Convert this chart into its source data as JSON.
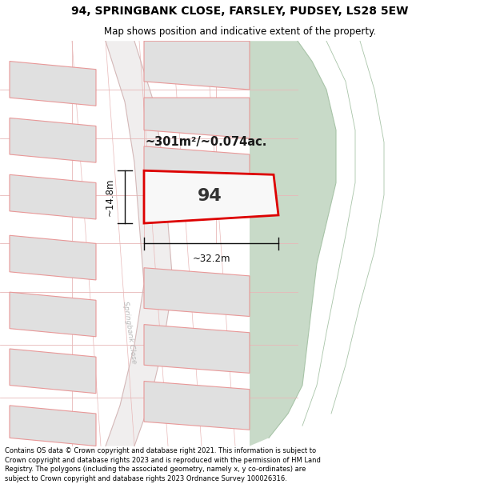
{
  "title_line1": "94, SPRINGBANK CLOSE, FARSLEY, PUDSEY, LS28 5EW",
  "title_line2": "Map shows position and indicative extent of the property.",
  "footer_text": "Contains OS data © Crown copyright and database right 2021. This information is subject to Crown copyright and database rights 2023 and is reproduced with the permission of HM Land Registry. The polygons (including the associated geometry, namely x, y co-ordinates) are subject to Crown copyright and database rights 2023 Ordnance Survey 100026316.",
  "background_color": "#ffffff",
  "map_bg_color": "#f7f7f7",
  "green_area_color": "#c8dac8",
  "green_area_border": "#a8c4a8",
  "plot_border_color": "#dd0000",
  "plot_label": "94",
  "area_label": "~301m²/~0.074ac.",
  "width_label": "~32.2m",
  "height_label": "~14.8m",
  "road_label": "Springbank Close",
  "other_plot_fill": "#e0e0e0",
  "other_plot_border": "#e89898",
  "road_line_color": "#d4b8b8",
  "cadastral_line_color": "#e8b8b8",
  "dim_line_color": "#111111",
  "title_fontsize": 10,
  "subtitle_fontsize": 8.5,
  "footer_fontsize": 6.0
}
